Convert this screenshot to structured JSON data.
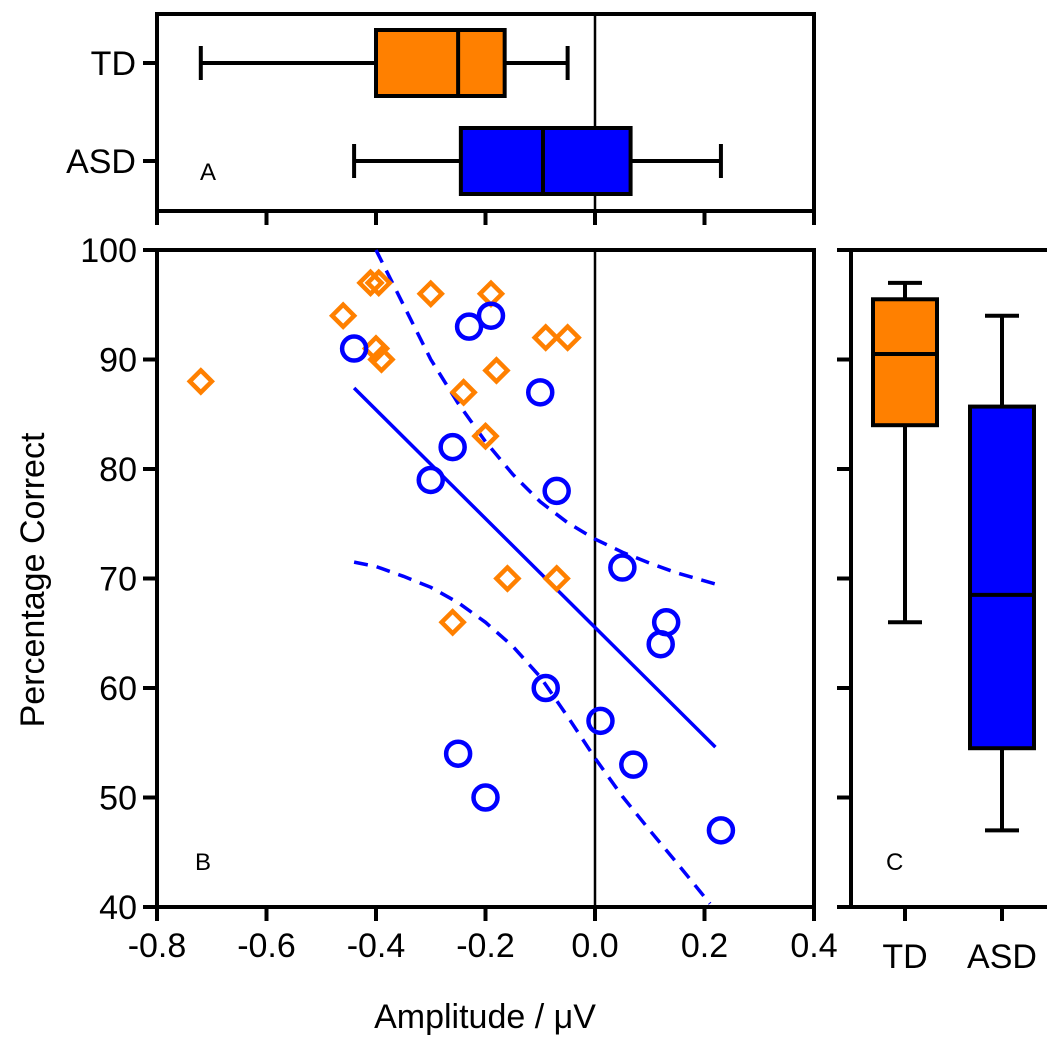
{
  "colors": {
    "td": "#ff8000",
    "asd": "#0000ff",
    "td_box": "#ff8000",
    "asd_box": "#0000ff",
    "axis": "#000000"
  },
  "chart_data": [
    {
      "panel": "A",
      "type": "boxplot",
      "orientation": "horizontal",
      "categories": [
        "TD",
        "ASD"
      ],
      "boxes": [
        {
          "name": "TD",
          "min": -0.72,
          "q1": -0.4,
          "median": -0.25,
          "q3": -0.165,
          "max": -0.05
        },
        {
          "name": "ASD",
          "min": -0.44,
          "q1": -0.245,
          "median": -0.095,
          "q3": 0.065,
          "max": 0.23
        }
      ],
      "xlim": [
        -0.8,
        0.4
      ],
      "reference_line_x": 0
    },
    {
      "panel": "B",
      "type": "scatter",
      "xlabel": "Amplitude / μV",
      "ylabel": "Percentage Correct",
      "xlim": [
        -0.8,
        0.4
      ],
      "ylim": [
        40,
        100
      ],
      "xticks": [
        "-0.8",
        "-0.6",
        "-0.4",
        "-0.2",
        "0.0",
        "0.2",
        "0.4"
      ],
      "yticks": [
        "40",
        "50",
        "60",
        "70",
        "80",
        "90",
        "100"
      ],
      "reference_line_x": 0,
      "series": [
        {
          "marker": "diamond",
          "color": "#ff8000",
          "points": [
            {
              "x": -0.72,
              "y": 88
            },
            {
              "x": -0.46,
              "y": 94
            },
            {
              "x": -0.41,
              "y": 97
            },
            {
              "x": -0.395,
              "y": 97
            },
            {
              "x": -0.4,
              "y": 91
            },
            {
              "x": -0.39,
              "y": 90
            },
            {
              "x": -0.3,
              "y": 96
            },
            {
              "x": -0.19,
              "y": 96
            },
            {
              "x": -0.24,
              "y": 87
            },
            {
              "x": -0.18,
              "y": 89
            },
            {
              "x": -0.2,
              "y": 83
            },
            {
              "x": -0.09,
              "y": 92
            },
            {
              "x": -0.05,
              "y": 92
            },
            {
              "x": -0.16,
              "y": 70
            },
            {
              "x": -0.07,
              "y": 70
            },
            {
              "x": -0.26,
              "y": 66
            }
          ]
        },
        {
          "marker": "circle",
          "color": "#0000ff",
          "points": [
            {
              "x": -0.44,
              "y": 91
            },
            {
              "x": -0.23,
              "y": 93
            },
            {
              "x": -0.19,
              "y": 94
            },
            {
              "x": -0.1,
              "y": 87
            },
            {
              "x": -0.26,
              "y": 82
            },
            {
              "x": -0.3,
              "y": 79
            },
            {
              "x": -0.07,
              "y": 78
            },
            {
              "x": 0.05,
              "y": 71
            },
            {
              "x": 0.13,
              "y": 66
            },
            {
              "x": 0.12,
              "y": 64
            },
            {
              "x": -0.09,
              "y": 60
            },
            {
              "x": 0.01,
              "y": 57
            },
            {
              "x": 0.07,
              "y": 53
            },
            {
              "x": -0.25,
              "y": 54
            },
            {
              "x": -0.2,
              "y": 50
            },
            {
              "x": 0.23,
              "y": 47
            }
          ]
        }
      ],
      "regression": {
        "fit": [
          [
            -0.44,
            87.4
          ],
          [
            0.22,
            54.6
          ]
        ],
        "upper_band": [
          [
            -0.4,
            100
          ],
          [
            -0.35,
            95
          ],
          [
            -0.3,
            90
          ],
          [
            -0.25,
            86
          ],
          [
            -0.2,
            82.5
          ],
          [
            -0.15,
            79.5
          ],
          [
            -0.1,
            77
          ],
          [
            -0.05,
            75.1
          ],
          [
            0.0,
            73.6
          ],
          [
            0.05,
            72.4
          ],
          [
            0.1,
            71.4
          ],
          [
            0.15,
            70.5
          ],
          [
            0.22,
            69.5
          ]
        ],
        "lower_band": [
          [
            -0.44,
            71.5
          ],
          [
            -0.4,
            71.1
          ],
          [
            -0.35,
            70.2
          ],
          [
            -0.3,
            69.2
          ],
          [
            -0.25,
            67.8
          ],
          [
            -0.2,
            66.0
          ],
          [
            -0.15,
            63.8
          ],
          [
            -0.1,
            61.0
          ],
          [
            -0.05,
            57.4
          ],
          [
            0.0,
            53.6
          ],
          [
            0.05,
            50.1
          ],
          [
            0.1,
            47.0
          ],
          [
            0.15,
            44.0
          ],
          [
            0.21,
            40.3
          ]
        ]
      }
    },
    {
      "panel": "C",
      "type": "boxplot",
      "orientation": "vertical",
      "categories": [
        "TD",
        "ASD"
      ],
      "boxes": [
        {
          "name": "TD",
          "min": 66,
          "q1": 84,
          "median": 90.5,
          "q3": 95.5,
          "max": 97
        },
        {
          "name": "ASD",
          "min": 47,
          "q1": 54.5,
          "median": 68.5,
          "q3": 85.7,
          "max": 94
        }
      ],
      "ylim": [
        40,
        100
      ]
    }
  ],
  "labels": {
    "panel_a": "A",
    "panel_b": "B",
    "panel_c": "C",
    "td": "TD",
    "asd": "ASD",
    "xlabel": "Amplitude / μV",
    "ylabel": "Percentage Correct"
  }
}
